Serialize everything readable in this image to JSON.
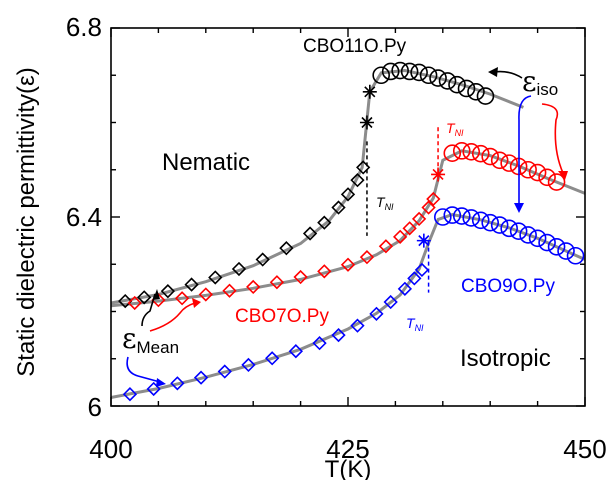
{
  "chart_data": {
    "type": "scatter",
    "xlabel": "T(K)",
    "ylabel": "Static dielectric permittivity(ε)",
    "xlim": [
      400,
      450
    ],
    "ylim": [
      6.0,
      6.8
    ],
    "xticks": [
      "400",
      "425",
      "450"
    ],
    "yticks": [
      "6",
      "6.4",
      "6.8"
    ],
    "grid": false,
    "annotations": {
      "nematic": "Nematic",
      "isotropic": "Isotropic",
      "eps_iso_symbol": "ε",
      "eps_iso_sub": "iso",
      "eps_mean_symbol": "ε",
      "eps_mean_sub": "Mean",
      "tni_symbol": "T",
      "tni_sub": "NI"
    },
    "series": [
      {
        "name": "CBO11O.Py",
        "color": "#000000",
        "tni": 427.0,
        "nematic_x": [
          401.5,
          403.5,
          406,
          408.5,
          411,
          413.5,
          416,
          418.5,
          421,
          422.5,
          424,
          425,
          426,
          426.6
        ],
        "nematic_y": [
          6.222,
          6.23,
          6.243,
          6.257,
          6.272,
          6.29,
          6.31,
          6.334,
          6.365,
          6.388,
          6.42,
          6.448,
          6.478,
          6.505
        ],
        "transition_x": [
          427.0,
          427.3
        ],
        "transition_y": [
          6.6,
          6.665
        ],
        "iso_x": [
          428.5,
          429.5,
          430.5,
          431.5,
          432.5,
          433.5,
          434.5,
          435.5,
          436.5,
          437.5,
          438.5,
          439.5
        ],
        "iso_y": [
          6.7,
          6.708,
          6.71,
          6.708,
          6.706,
          6.7,
          6.694,
          6.688,
          6.68,
          6.672,
          6.665,
          6.656
        ],
        "fit_x": [
          400,
          405,
          410,
          415,
          420,
          423,
          425,
          426.5,
          427.3,
          428.5,
          431,
          434,
          437,
          440,
          443.5
        ],
        "fit_y": [
          6.218,
          6.236,
          6.263,
          6.297,
          6.344,
          6.392,
          6.443,
          6.505,
          6.665,
          6.705,
          6.71,
          6.697,
          6.68,
          6.66,
          6.632
        ]
      },
      {
        "name": "CBO7O.Py",
        "color": "#ff0000",
        "tni": 434.5,
        "nematic_x": [
          402.5,
          405,
          407.5,
          410,
          412.5,
          415,
          417.5,
          420,
          422.5,
          425,
          427,
          429,
          430.5,
          431.5,
          432.5,
          433.5,
          434
        ],
        "nematic_y": [
          6.218,
          6.224,
          6.228,
          6.236,
          6.244,
          6.252,
          6.262,
          6.273,
          6.285,
          6.299,
          6.315,
          6.338,
          6.358,
          6.376,
          6.396,
          6.42,
          6.438
        ],
        "transition_x": [
          434.5
        ],
        "transition_y": [
          6.49
        ],
        "iso_x": [
          436,
          437,
          438,
          439,
          440,
          441,
          442,
          443,
          444,
          445,
          446,
          447
        ],
        "iso_y": [
          6.535,
          6.54,
          6.538,
          6.534,
          6.528,
          6.52,
          6.514,
          6.507,
          6.5,
          6.494,
          6.484,
          6.474
        ],
        "fit_x": [
          400,
          405,
          410,
          415,
          420,
          425,
          428,
          430.5,
          432.5,
          434,
          435,
          437,
          440,
          443,
          446,
          450
        ],
        "fit_y": [
          6.212,
          6.222,
          6.234,
          6.249,
          6.268,
          6.295,
          6.32,
          6.35,
          6.392,
          6.44,
          6.52,
          6.54,
          6.53,
          6.508,
          6.482,
          6.45
        ]
      },
      {
        "name": "CBO9O.Py",
        "color": "#0000ff",
        "tni": 433.5,
        "nematic_x": [
          402,
          404.5,
          407,
          409.5,
          412,
          414.5,
          417,
          419.5,
          422,
          424,
          426,
          428,
          429.5,
          431,
          432,
          432.8
        ],
        "nematic_y": [
          6.025,
          6.036,
          6.048,
          6.06,
          6.073,
          6.087,
          6.101,
          6.116,
          6.133,
          6.15,
          6.17,
          6.195,
          6.22,
          6.248,
          6.27,
          6.288
        ],
        "transition_x": [
          433.0
        ],
        "transition_y": [
          6.35
        ],
        "iso_x": [
          435,
          436,
          437,
          438,
          439,
          440,
          441,
          442,
          443,
          444,
          445,
          446,
          447,
          448,
          449
        ],
        "iso_y": [
          6.4,
          6.404,
          6.402,
          6.398,
          6.393,
          6.388,
          6.383,
          6.376,
          6.37,
          6.362,
          6.355,
          6.346,
          6.337,
          6.328,
          6.318
        ],
        "fit_x": [
          400,
          405,
          410,
          415,
          420,
          425,
          428,
          430.5,
          432.5,
          433.5,
          434.5,
          436,
          439,
          442,
          445,
          450
        ],
        "fit_y": [
          6.018,
          6.037,
          6.061,
          6.088,
          6.12,
          6.163,
          6.196,
          6.235,
          6.29,
          6.345,
          6.395,
          6.405,
          6.394,
          6.377,
          6.355,
          6.31
        ]
      }
    ]
  }
}
